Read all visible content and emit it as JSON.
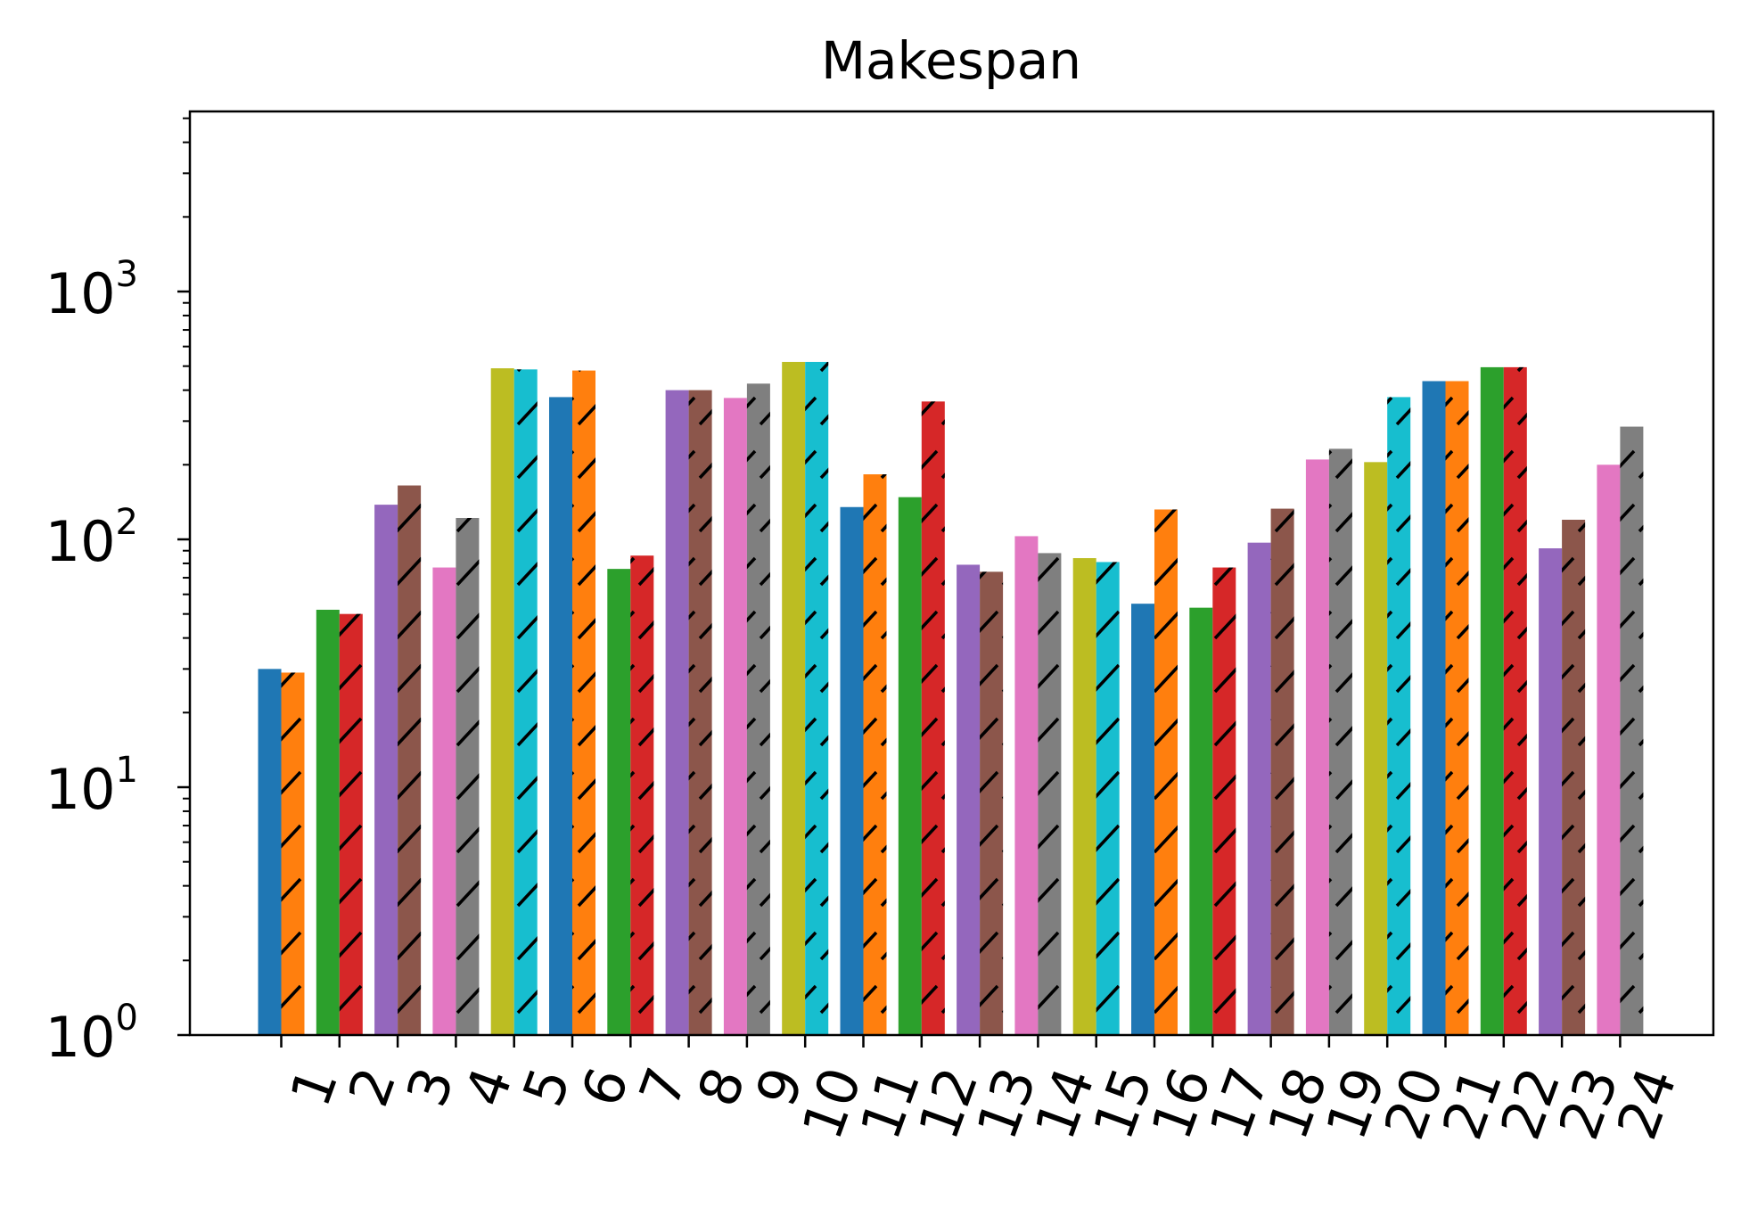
{
  "chart_data": {
    "type": "bar",
    "title": "Makespan",
    "xlabel": "",
    "ylabel": "",
    "yscale": "log",
    "ylim": [
      1,
      5000
    ],
    "y_ticks": [
      {
        "base": "10",
        "exp": "0",
        "value": 1
      },
      {
        "base": "10",
        "exp": "1",
        "value": 10
      },
      {
        "base": "10",
        "exp": "2",
        "value": 100
      },
      {
        "base": "10",
        "exp": "3",
        "value": 1000
      }
    ],
    "categories": [
      "1",
      "2",
      "3",
      "4",
      "5",
      "6",
      "7",
      "8",
      "9",
      "10",
      "11",
      "12",
      "13",
      "14",
      "15",
      "16",
      "17",
      "18",
      "19",
      "20",
      "21",
      "22",
      "23",
      "24"
    ],
    "grid": false,
    "legend": "none",
    "palette": [
      "#1f77b4",
      "#ff7f0e",
      "#2ca02c",
      "#d62728",
      "#9467bd",
      "#8c564b",
      "#e377c2",
      "#7f7f7f",
      "#bcbd22",
      "#17becf"
    ],
    "hatch_color": "#000000",
    "series": [
      {
        "hatch": "none",
        "values": [
          30,
          52,
          138,
          77,
          490,
          375,
          76,
          400,
          372,
          520,
          135,
          148,
          79,
          103,
          84,
          55,
          53,
          97,
          210,
          205,
          435,
          495,
          92,
          200
        ]
      },
      {
        "hatch": "diagonal",
        "values": [
          29,
          50,
          165,
          122,
          485,
          480,
          86,
          400,
          425,
          520,
          183,
          360,
          74,
          88,
          81,
          132,
          77,
          133,
          232,
          375,
          435,
          495,
          120,
          285
        ]
      }
    ]
  }
}
